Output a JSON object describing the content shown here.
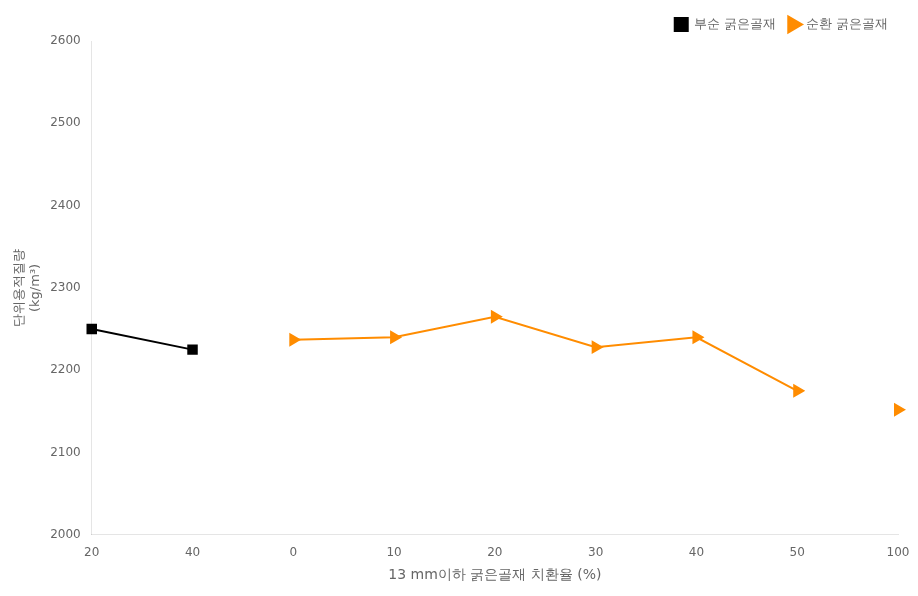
{
  "chart_data": {
    "type": "line",
    "x_label": "13 mm이하 굵은골재 치환율 (%)",
    "y_label": [
      "단위용적질량",
      "(kg/m³)"
    ],
    "categories": [
      "20",
      "40",
      "0",
      "10",
      "20",
      "30",
      "40",
      "50",
      "100"
    ],
    "series": [
      {
        "name": "부순 굵은골재",
        "color": "#000000",
        "marker": "square",
        "line_style": "solid",
        "values": [
          2250,
          2225,
          null,
          null,
          null,
          null,
          null,
          null,
          null
        ]
      },
      {
        "name": "순환 굵은골재",
        "color": "#FF8C00",
        "marker": "triangle-right",
        "line_style": "solid",
        "values": [
          null,
          null,
          2237,
          2240,
          2265,
          2228,
          2240,
          2175,
          null
        ]
      },
      {
        "color": "#FF8C00",
        "marker": "triangle-right",
        "line_style": "none",
        "values": [
          null,
          null,
          null,
          null,
          null,
          null,
          null,
          null,
          2152
        ]
      }
    ],
    "ylim": [
      2000,
      2600
    ],
    "yticks": [
      2000,
      2100,
      2200,
      2300,
      2400,
      2500,
      2600
    ],
    "grid": false,
    "legend": "upper right"
  }
}
